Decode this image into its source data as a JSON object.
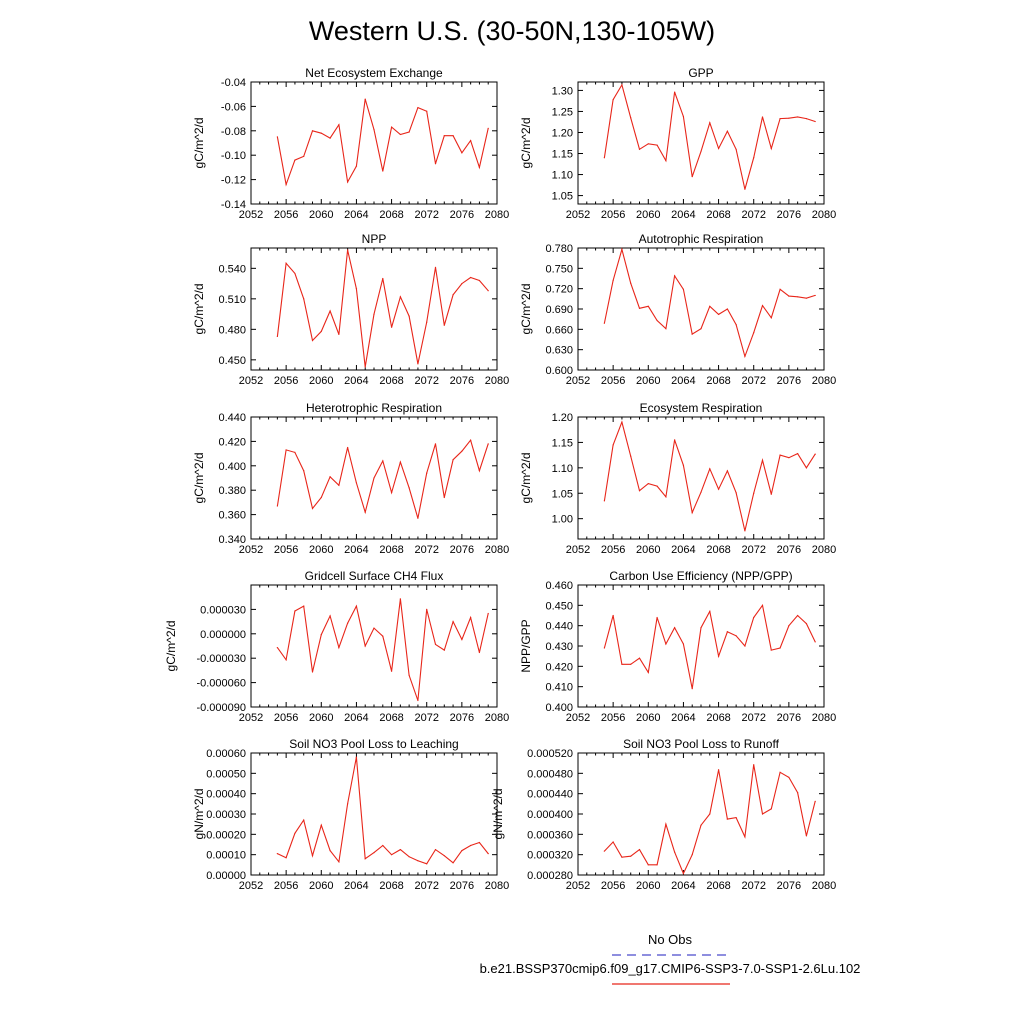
{
  "title": "Western U.S. (30-50N,130-105W)",
  "colors": {
    "series": "#e8261a",
    "obs": "#4a4acc",
    "axis": "#000000"
  },
  "legend": {
    "obs_label": "No Obs",
    "case_label": "b.e21.BSSP370cmip6.f09_g17.CMIP6-SSP3-7.0-SSP1-2.6Lu.102"
  },
  "x_ticks": [
    "2052",
    "2056",
    "2060",
    "2064",
    "2068",
    "2072",
    "2076",
    "2080"
  ],
  "chart_data": [
    {
      "type": "line",
      "title": "Net Ecosystem Exchange",
      "ylabel": "gC/m^2/d",
      "xlim": [
        2052,
        2080
      ],
      "ylim": [
        -0.14,
        -0.04
      ],
      "yticks": [
        -0.14,
        -0.12,
        -0.1,
        -0.08,
        -0.06,
        -0.04
      ],
      "ytick_labels": [
        "-0.14",
        "-0.12",
        "-0.10",
        "-0.08",
        "-0.06",
        "-0.04"
      ],
      "x": [
        2055,
        2056,
        2057,
        2058,
        2059,
        2060,
        2061,
        2062,
        2063,
        2064,
        2065,
        2066,
        2067,
        2068,
        2069,
        2070,
        2071,
        2072,
        2073,
        2074,
        2075,
        2076,
        2077,
        2078,
        2079
      ],
      "y": [
        -0.085,
        -0.124,
        -0.104,
        -0.101,
        -0.08,
        -0.082,
        -0.086,
        -0.075,
        -0.122,
        -0.109,
        -0.054,
        -0.079,
        -0.113,
        -0.077,
        -0.083,
        -0.081,
        -0.061,
        -0.064,
        -0.107,
        -0.084,
        -0.084,
        -0.098,
        -0.088,
        -0.11,
        -0.078
      ]
    },
    {
      "type": "line",
      "title": "GPP",
      "ylabel": "gC/m^2/d",
      "xlim": [
        2052,
        2080
      ],
      "ylim": [
        1.03,
        1.32
      ],
      "yticks": [
        1.05,
        1.1,
        1.15,
        1.2,
        1.25,
        1.3
      ],
      "ytick_labels": [
        "1.05",
        "1.10",
        "1.15",
        "1.20",
        "1.25",
        "1.30"
      ],
      "x": [
        2055,
        2056,
        2057,
        2058,
        2059,
        2060,
        2061,
        2062,
        2063,
        2064,
        2065,
        2066,
        2067,
        2068,
        2069,
        2070,
        2071,
        2072,
        2073,
        2074,
        2075,
        2076,
        2077,
        2078,
        2079
      ],
      "y": [
        1.14,
        1.278,
        1.313,
        1.235,
        1.16,
        1.173,
        1.17,
        1.133,
        1.296,
        1.238,
        1.095,
        1.155,
        1.223,
        1.162,
        1.203,
        1.16,
        1.065,
        1.14,
        1.237,
        1.162,
        1.233,
        1.234,
        1.237,
        1.233,
        1.226
      ]
    },
    {
      "type": "line",
      "title": "NPP",
      "ylabel": "gC/m^2/d",
      "xlim": [
        2052,
        2080
      ],
      "ylim": [
        0.44,
        0.56
      ],
      "yticks": [
        0.45,
        0.48,
        0.51,
        0.54
      ],
      "ytick_labels": [
        "0.450",
        "0.480",
        "0.510",
        "0.540"
      ],
      "x": [
        2055,
        2056,
        2057,
        2058,
        2059,
        2060,
        2061,
        2062,
        2063,
        2064,
        2065,
        2066,
        2067,
        2068,
        2069,
        2070,
        2071,
        2072,
        2073,
        2074,
        2075,
        2076,
        2077,
        2078,
        2079
      ],
      "y": [
        0.473,
        0.545,
        0.535,
        0.51,
        0.469,
        0.478,
        0.498,
        0.475,
        0.558,
        0.52,
        0.443,
        0.495,
        0.53,
        0.482,
        0.512,
        0.493,
        0.446,
        0.487,
        0.541,
        0.484,
        0.514,
        0.525,
        0.531,
        0.528,
        0.518
      ]
    },
    {
      "type": "line",
      "title": "Autotrophic Respiration",
      "ylabel": "gC/m^2/d",
      "xlim": [
        2052,
        2080
      ],
      "ylim": [
        0.6,
        0.78
      ],
      "yticks": [
        0.6,
        0.63,
        0.66,
        0.69,
        0.72,
        0.75,
        0.78
      ],
      "ytick_labels": [
        "0.600",
        "0.630",
        "0.660",
        "0.690",
        "0.720",
        "0.750",
        "0.780"
      ],
      "x": [
        2055,
        2056,
        2057,
        2058,
        2059,
        2060,
        2061,
        2062,
        2063,
        2064,
        2065,
        2066,
        2067,
        2068,
        2069,
        2070,
        2071,
        2072,
        2073,
        2074,
        2075,
        2076,
        2077,
        2078,
        2079
      ],
      "y": [
        0.669,
        0.732,
        0.778,
        0.728,
        0.691,
        0.694,
        0.673,
        0.661,
        0.739,
        0.719,
        0.653,
        0.661,
        0.694,
        0.682,
        0.69,
        0.667,
        0.62,
        0.655,
        0.695,
        0.677,
        0.719,
        0.709,
        0.708,
        0.706,
        0.71
      ]
    },
    {
      "type": "line",
      "title": "Heterotrophic Respiration",
      "ylabel": "gC/m^2/d",
      "xlim": [
        2052,
        2080
      ],
      "ylim": [
        0.34,
        0.44
      ],
      "yticks": [
        0.34,
        0.36,
        0.38,
        0.4,
        0.42,
        0.44
      ],
      "ytick_labels": [
        "0.340",
        "0.360",
        "0.380",
        "0.400",
        "0.420",
        "0.440"
      ],
      "x": [
        2055,
        2056,
        2057,
        2058,
        2059,
        2060,
        2061,
        2062,
        2063,
        2064,
        2065,
        2066,
        2067,
        2068,
        2069,
        2070,
        2071,
        2072,
        2073,
        2074,
        2075,
        2076,
        2077,
        2078,
        2079
      ],
      "y": [
        0.367,
        0.413,
        0.411,
        0.396,
        0.365,
        0.374,
        0.391,
        0.384,
        0.415,
        0.386,
        0.362,
        0.39,
        0.404,
        0.378,
        0.403,
        0.382,
        0.357,
        0.394,
        0.418,
        0.374,
        0.405,
        0.412,
        0.421,
        0.396,
        0.418
      ]
    },
    {
      "type": "line",
      "title": "Ecosystem Respiration",
      "ylabel": "gC/m^2/d",
      "xlim": [
        2052,
        2080
      ],
      "ylim": [
        0.96,
        1.2
      ],
      "yticks": [
        1.0,
        1.05,
        1.1,
        1.15,
        1.2
      ],
      "ytick_labels": [
        "1.00",
        "1.05",
        "1.10",
        "1.15",
        "1.20"
      ],
      "x": [
        2055,
        2056,
        2057,
        2058,
        2059,
        2060,
        2061,
        2062,
        2063,
        2064,
        2065,
        2066,
        2067,
        2068,
        2069,
        2070,
        2071,
        2072,
        2073,
        2074,
        2075,
        2076,
        2077,
        2078,
        2079
      ],
      "y": [
        1.035,
        1.145,
        1.19,
        1.123,
        1.055,
        1.069,
        1.064,
        1.043,
        1.155,
        1.105,
        1.012,
        1.052,
        1.098,
        1.058,
        1.094,
        1.051,
        0.976,
        1.05,
        1.115,
        1.048,
        1.125,
        1.12,
        1.128,
        1.1,
        1.127
      ]
    },
    {
      "type": "line",
      "title": "Gridcell Surface CH4 Flux",
      "ylabel": "gC/m^2/d",
      "xlim": [
        2052,
        2080
      ],
      "ylim": [
        -9e-05,
        6e-05
      ],
      "yticks": [
        -9e-05,
        -6e-05,
        -3e-05,
        0.0,
        3e-05
      ],
      "ytick_labels": [
        "-0.000090",
        "-0.000060",
        "-0.000030",
        "0.000000",
        "0.000030"
      ],
      "x": [
        2055,
        2056,
        2057,
        2058,
        2059,
        2060,
        2061,
        2062,
        2063,
        2064,
        2065,
        2066,
        2067,
        2068,
        2069,
        2070,
        2071,
        2072,
        2073,
        2074,
        2075,
        2076,
        2077,
        2078,
        2079
      ],
      "y": [
        -1.7e-05,
        -3.2e-05,
        2.8e-05,
        3.4e-05,
        -4.7e-05,
        -1e-06,
        2.2e-05,
        -1.7e-05,
        1.3e-05,
        3.4e-05,
        -1.5e-05,
        7e-06,
        -3e-06,
        -4.6e-05,
        4.3e-05,
        -5.1e-05,
        -8.2e-05,
        3e-05,
        -1.3e-05,
        -2e-05,
        1.5e-05,
        -7e-06,
        2e-05,
        -2.3e-05,
        2.5e-05
      ]
    },
    {
      "type": "line",
      "title": "Carbon Use Efficiency (NPP/GPP)",
      "ylabel": "NPP/GPP",
      "xlim": [
        2052,
        2080
      ],
      "ylim": [
        0.4,
        0.46
      ],
      "yticks": [
        0.4,
        0.41,
        0.42,
        0.43,
        0.44,
        0.45,
        0.46
      ],
      "ytick_labels": [
        "0.400",
        "0.410",
        "0.420",
        "0.430",
        "0.440",
        "0.450",
        "0.460"
      ],
      "x": [
        2055,
        2056,
        2057,
        2058,
        2059,
        2060,
        2061,
        2062,
        2063,
        2064,
        2065,
        2066,
        2067,
        2068,
        2069,
        2070,
        2071,
        2072,
        2073,
        2074,
        2075,
        2076,
        2077,
        2078,
        2079
      ],
      "y": [
        0.429,
        0.445,
        0.421,
        0.421,
        0.424,
        0.417,
        0.444,
        0.431,
        0.439,
        0.431,
        0.409,
        0.439,
        0.447,
        0.425,
        0.437,
        0.435,
        0.43,
        0.444,
        0.45,
        0.428,
        0.429,
        0.44,
        0.445,
        0.441,
        0.432
      ]
    },
    {
      "type": "line",
      "title": "Soil NO3 Pool Loss to Leaching",
      "ylabel": "gN/m^2/d",
      "xlim": [
        2052,
        2080
      ],
      "ylim": [
        0.0,
        0.0006
      ],
      "yticks": [
        0.0,
        0.0001,
        0.0002,
        0.0003,
        0.0004,
        0.0005,
        0.0006
      ],
      "ytick_labels": [
        "0.00000",
        "0.00010",
        "0.00020",
        "0.00030",
        "0.00040",
        "0.00050",
        "0.00060"
      ],
      "x": [
        2055,
        2056,
        2057,
        2058,
        2059,
        2060,
        2061,
        2062,
        2063,
        2064,
        2065,
        2066,
        2067,
        2068,
        2069,
        2070,
        2071,
        2072,
        2073,
        2074,
        2075,
        2076,
        2077,
        2078,
        2079
      ],
      "y": [
        0.000105,
        8.5e-05,
        0.000205,
        0.00027,
        9.5e-05,
        0.000245,
        0.00012,
        6.5e-05,
        0.00035,
        0.00058,
        8e-05,
        0.00011,
        0.000145,
        0.0001,
        0.000125,
        9e-05,
        7e-05,
        5.5e-05,
        0.000125,
        9.5e-05,
        6e-05,
        0.00012,
        0.000145,
        0.00016,
        0.000105
      ]
    },
    {
      "type": "line",
      "title": "Soil NO3 Pool Loss to Runoff",
      "ylabel": "gN/m^2/d",
      "xlim": [
        2052,
        2080
      ],
      "ylim": [
        0.00028,
        0.00052
      ],
      "yticks": [
        0.00028,
        0.00032,
        0.00036,
        0.0004,
        0.00044,
        0.00048,
        0.00052
      ],
      "ytick_labels": [
        "0.000280",
        "0.000320",
        "0.000360",
        "0.000400",
        "0.000440",
        "0.000480",
        "0.000520"
      ],
      "x": [
        2055,
        2056,
        2057,
        2058,
        2059,
        2060,
        2061,
        2062,
        2063,
        2064,
        2065,
        2066,
        2067,
        2068,
        2069,
        2070,
        2071,
        2072,
        2073,
        2074,
        2075,
        2076,
        2077,
        2078,
        2079
      ],
      "y": [
        0.000327,
        0.000345,
        0.000315,
        0.000317,
        0.00033,
        0.0003,
        0.0003,
        0.00038,
        0.000325,
        0.000283,
        0.00032,
        0.000378,
        0.0004,
        0.000487,
        0.00039,
        0.000393,
        0.000355,
        0.000497,
        0.0004,
        0.00041,
        0.000482,
        0.000472,
        0.000442,
        0.000357,
        0.000425
      ]
    }
  ]
}
